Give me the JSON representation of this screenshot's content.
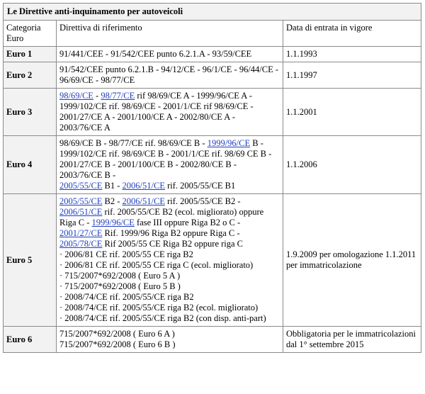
{
  "caption": "Le Direttive anti-inquinamento per autoveicoli",
  "headers": {
    "categoria": "Categoria Euro",
    "direttiva": "Directiva di riferimento",
    "data": "Data di entrata in vigore"
  },
  "rows": [
    {
      "cat": "Euro 1",
      "dir": [
        [
          {
            "t": "91/441/CEE - 91/542/CEE punto 6.2.1.A - 93/59/CEE"
          }
        ]
      ],
      "date": "1.1.1993"
    },
    {
      "cat": "Euro 2",
      "dir": [
        [
          {
            "t": "91/542/CEE punto 6.2.1.B - 94/12/CE - 96/1/CE - 96/44/CE - 96/69/CE - 98/77/CE"
          }
        ]
      ],
      "date": "1.1.1997"
    },
    {
      "cat": "Euro 3",
      "dir": [
        [
          {
            "t": "98/69/CE",
            "link": true
          },
          {
            "t": " - "
          },
          {
            "t": "98/77/CE",
            "link": true
          },
          {
            "t": " rif 98/69/CE A - 1999/96/CE A - 1999/102/CE rif. 98/69/CE - 2001/1/CE rif 98/69/CE - 2001/27/CE A - 2001/100/CE A - 2002/80/CE A - 2003/76/CE A"
          }
        ]
      ],
      "date": "1.1.2001"
    },
    {
      "cat": "Euro 4",
      "dir": [
        [
          {
            "t": "98/69/CE B - 98/77/CE rif. 98/69/CE B - "
          },
          {
            "t": "1999/96/CE",
            "link": true
          },
          {
            "t": " B - 1999/102/CE rif. 98/69/CE B - 2001/1/CE rif. 98/69 CE B - 2001/27/CE B - 2001/100/CE B - 2002/80/CE B - 2003/76/CE B -"
          }
        ],
        [
          {
            "t": "2005/55/CE",
            "link": true
          },
          {
            "t": " B1 - "
          },
          {
            "t": "2006/51/CE",
            "link": true
          },
          {
            "t": " rif. 2005/55/CE B1"
          }
        ]
      ],
      "date": "1.1.2006"
    },
    {
      "cat": "Euro 5",
      "dir": [
        [
          {
            "t": "2005/55/CE",
            "link": true
          },
          {
            "t": " B2 - "
          },
          {
            "t": "2006/51/CE",
            "link": true
          },
          {
            "t": " rif. 2005/55/CE B2 - "
          },
          {
            "t": "2006/51/CE",
            "link": true
          },
          {
            "t": " rif. 2005/55/CE B2 (ecol. migliorato) oppure Riga C - "
          },
          {
            "t": "1999/96/CE",
            "link": true
          },
          {
            "t": " fase III oppure Riga B2 o C - "
          },
          {
            "t": "2001/27/CE",
            "link": true
          },
          {
            "t": " Rif. 1999/96 Riga B2 oppure Riga C - "
          },
          {
            "t": "2005/78/CE",
            "link": true
          },
          {
            "t": " Rif 2005/55 CE Riga B2 oppure riga C"
          }
        ],
        [
          {
            "t": "· 2006/81 CE rif. 2005/55 CE riga B2"
          }
        ],
        [
          {
            "t": "· 2006/81 CE rif. 2005/55 CE riga C (ecol. migliorato)"
          }
        ],
        [
          {
            "t": "· 715/2007*692/2008 ( Euro 5 A )"
          }
        ],
        [
          {
            "t": "· 715/2007*692/2008 ( Euro 5 B )"
          }
        ],
        [
          {
            "t": "· 2008/74/CE rif. 2005/55/CE riga B2"
          }
        ],
        [
          {
            "t": "· 2008/74/CE rif. 2005/55/CE riga B2 (ecol. migliorato)"
          }
        ],
        [
          {
            "t": "· 2008/74/CE rif. 2005/55/CE riga B2 (con disp. anti-part)"
          }
        ]
      ],
      "date": "1.9.2009 per omologazione 1.1.2011 per immatricolazione"
    },
    {
      "cat": "Euro 6",
      "dir": [
        [
          {
            "t": "715/2007*692/2008 ( Euro 6 A )"
          }
        ],
        [
          {
            "t": "715/2007*692/2008 ( Euro 6 B )"
          }
        ]
      ],
      "date": "Obbligatoria per le immatricolazioni dal 1° settembre 2015"
    }
  ]
}
